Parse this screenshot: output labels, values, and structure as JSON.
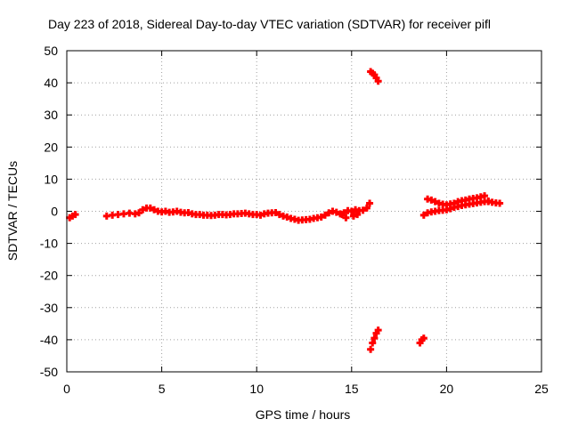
{
  "chart_data": {
    "type": "scatter",
    "title": "Day 223 of 2018, Sidereal Day-to-day VTEC variation (SDTVAR) for receiver pifl",
    "xlabel": "GPS time / hours",
    "ylabel": "SDTVAR / TECUs",
    "xlim": [
      0,
      25
    ],
    "ylim": [
      -50,
      50
    ],
    "xticks": [
      "0",
      "5",
      "10",
      "15",
      "20",
      "25"
    ],
    "yticks": [
      "50",
      "40",
      "30",
      "20",
      "10",
      "0",
      "-10",
      "-20",
      "-30",
      "-40",
      "-50"
    ],
    "xtick_values": [
      0,
      5,
      10,
      15,
      20,
      25
    ],
    "ytick_values": [
      50,
      40,
      30,
      20,
      10,
      0,
      -10,
      -20,
      -30,
      -40,
      -50
    ],
    "grid": true,
    "marker_color": "#ff0000",
    "marker": "plus",
    "series": [
      {
        "x": [
          0.15,
          0.3,
          0.45,
          2.1,
          2.4,
          2.7,
          3.0,
          3.3,
          3.6,
          3.8,
          4.0,
          4.2,
          4.4,
          4.6,
          4.8,
          5.0,
          5.2,
          5.4,
          5.6,
          5.8,
          6.0,
          6.2,
          6.4,
          6.6,
          6.8,
          7.0,
          7.2,
          7.4,
          7.6,
          7.8,
          8.0,
          8.2,
          8.4,
          8.6,
          8.8,
          9.0,
          9.2,
          9.4,
          9.6,
          9.8,
          10.0,
          10.2,
          10.4,
          10.6,
          10.8,
          11.0,
          11.2,
          11.4,
          11.6,
          11.8,
          12.0,
          12.2,
          12.4,
          12.6,
          12.8,
          13.0,
          13.2,
          13.4,
          13.6,
          13.8,
          14.0,
          14.2,
          14.4,
          14.6,
          14.8,
          15.0,
          15.2,
          15.4,
          15.6,
          15.8,
          15.95,
          14.5,
          14.7,
          15.1,
          15.3,
          16.0,
          16.1,
          16.2,
          16.3,
          16.4,
          16.0,
          16.1,
          16.2,
          16.3,
          16.4,
          18.6,
          18.7,
          18.8,
          19.0,
          19.2,
          19.4,
          19.6,
          19.8,
          20.0,
          20.2,
          20.4,
          20.6,
          20.8,
          21.0,
          21.2,
          21.4,
          21.6,
          21.8,
          22.0,
          22.2,
          22.4,
          22.6,
          22.8,
          18.8,
          19.0,
          19.2,
          19.4,
          19.6,
          19.8,
          20.0,
          20.2,
          20.4,
          20.6,
          20.8,
          21.0,
          21.2,
          21.4,
          21.6,
          21.8,
          22.0,
          22.2
        ],
        "y": [
          -2.0,
          -1.5,
          -1.0,
          -1.5,
          -1.2,
          -1.0,
          -0.8,
          -0.6,
          -0.8,
          -0.5,
          0.5,
          1.0,
          1.0,
          0.5,
          0.0,
          -0.2,
          0.0,
          -0.3,
          -0.2,
          0.0,
          -0.3,
          -0.5,
          -0.4,
          -0.8,
          -1.0,
          -1.0,
          -1.2,
          -1.2,
          -1.3,
          -1.2,
          -1.0,
          -1.0,
          -1.1,
          -1.0,
          -0.8,
          -0.8,
          -0.7,
          -0.6,
          -0.8,
          -1.0,
          -1.0,
          -1.2,
          -0.8,
          -0.6,
          -0.5,
          -0.4,
          -1.0,
          -1.5,
          -1.8,
          -2.2,
          -2.5,
          -2.8,
          -2.7,
          -2.6,
          -2.5,
          -2.2,
          -2.0,
          -1.8,
          -1.2,
          -0.5,
          0.0,
          -0.3,
          -0.8,
          -0.5,
          0.2,
          0.0,
          0.5,
          0.2,
          0.3,
          1.0,
          2.5,
          -1.0,
          -2.0,
          -1.5,
          -1.0,
          43.5,
          43.0,
          42.5,
          41.5,
          40.5,
          -43.0,
          -41.0,
          -39.5,
          -38.0,
          -37.0,
          -41.0,
          -40.0,
          -39.5,
          3.8,
          3.5,
          3.0,
          2.5,
          2.2,
          2.0,
          2.3,
          2.5,
          3.0,
          3.3,
          3.5,
          3.8,
          4.0,
          4.2,
          4.5,
          4.8,
          3.0,
          2.8,
          2.6,
          2.5,
          -1.2,
          -0.5,
          -0.2,
          0.0,
          0.2,
          0.3,
          0.5,
          0.8,
          1.2,
          1.5,
          1.8,
          2.0,
          2.2,
          2.4,
          2.6,
          2.8,
          3.0,
          3.2
        ]
      }
    ]
  }
}
